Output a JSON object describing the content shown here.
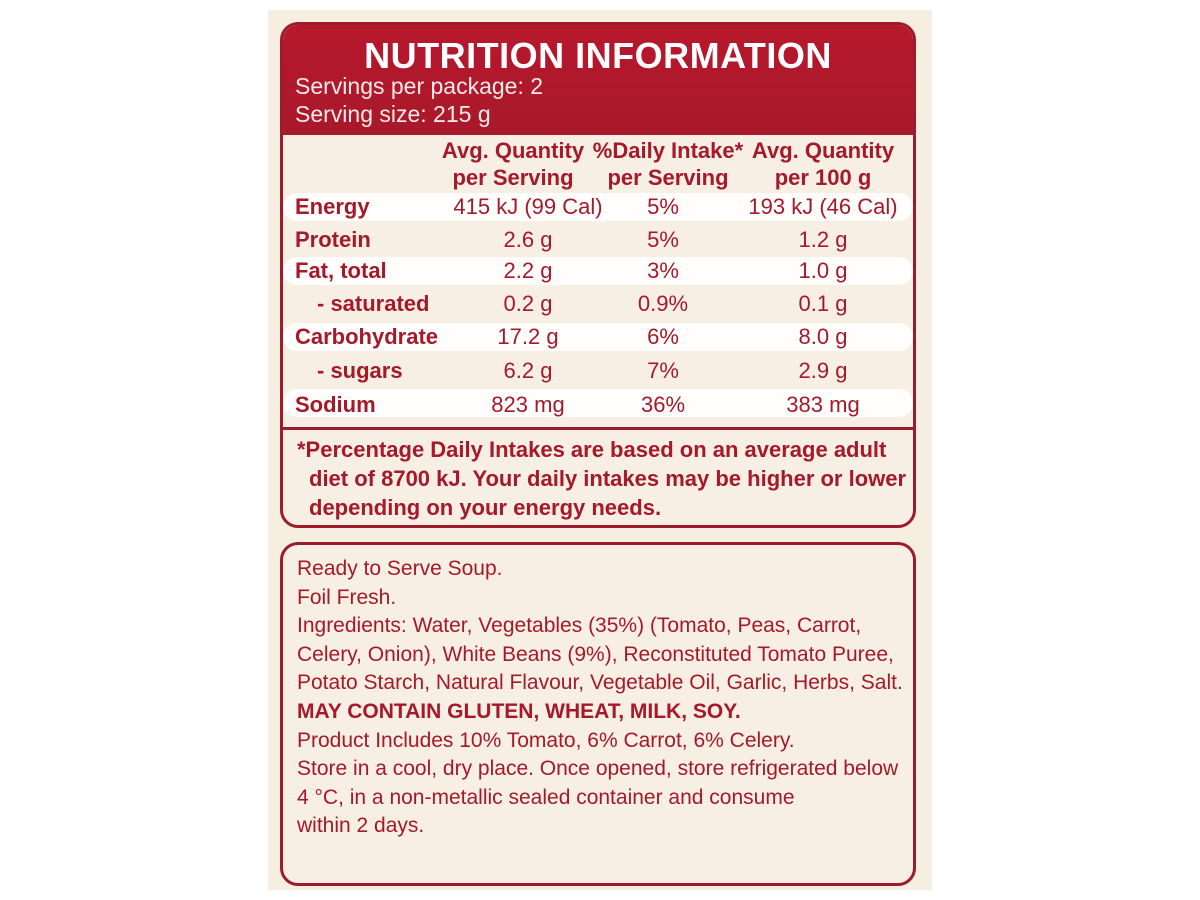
{
  "nutrition": {
    "title": "NUTRITION INFORMATION",
    "servings_per_package": "Servings per package: 2",
    "serving_size": "Serving size: 215 g",
    "columns": [
      [
        "Avg. Quantity",
        "per Serving"
      ],
      [
        "%Daily Intake*",
        "per Serving"
      ],
      [
        "Avg. Quantity",
        "per 100 g"
      ]
    ],
    "rows": [
      {
        "name": "Energy",
        "per_serving": "415 kJ (99 Cal)",
        "daily_intake": "5%",
        "per_100g": "193 kJ (46 Cal)"
      },
      {
        "name": "Protein",
        "per_serving": "2.6 g",
        "daily_intake": "5%",
        "per_100g": "1.2 g"
      },
      {
        "name": "Fat, total",
        "per_serving": "2.2 g",
        "daily_intake": "3%",
        "per_100g": "1.0 g"
      },
      {
        "name": "- saturated",
        "per_serving": "0.2 g",
        "daily_intake": "0.9%",
        "per_100g": "0.1 g"
      },
      {
        "name": "Carbohydrate",
        "per_serving": "17.2 g",
        "daily_intake": "6%",
        "per_100g": "8.0 g"
      },
      {
        "name": "- sugars",
        "per_serving": "6.2 g",
        "daily_intake": "7%",
        "per_100g": "2.9 g"
      },
      {
        "name": "Sodium",
        "per_serving": "823 mg",
        "daily_intake": "36%",
        "per_100g": "383 mg"
      }
    ],
    "footnote": [
      "*Percentage Daily Intakes are based on an average adult",
      "diet of 8700 kJ. Your daily intakes may be higher or lower",
      "depending on your energy needs."
    ]
  },
  "ingredients_panel": {
    "lines": [
      "Ready to Serve Soup.",
      "Foil Fresh.",
      "Ingredients: Water, Vegetables (35%) (Tomato, Peas, Carrot,",
      "Celery, Onion), White Beans (9%), Reconstituted Tomato Puree,",
      "Potato Starch, Natural Flavour, Vegetable Oil, Garlic, Herbs, Salt.",
      "MAY CONTAIN GLUTEN, WHEAT, MILK, SOY.",
      "Product Includes 10% Tomato, 6% Carrot, 6% Celery.",
      "Store in a cool, dry place. Once opened, store refrigerated below",
      "4 °C, in a non-metallic sealed container and consume",
      "within 2 days."
    ]
  },
  "colors": {
    "brand_red": "#a5192a",
    "label_cream": "#f6eee0"
  }
}
